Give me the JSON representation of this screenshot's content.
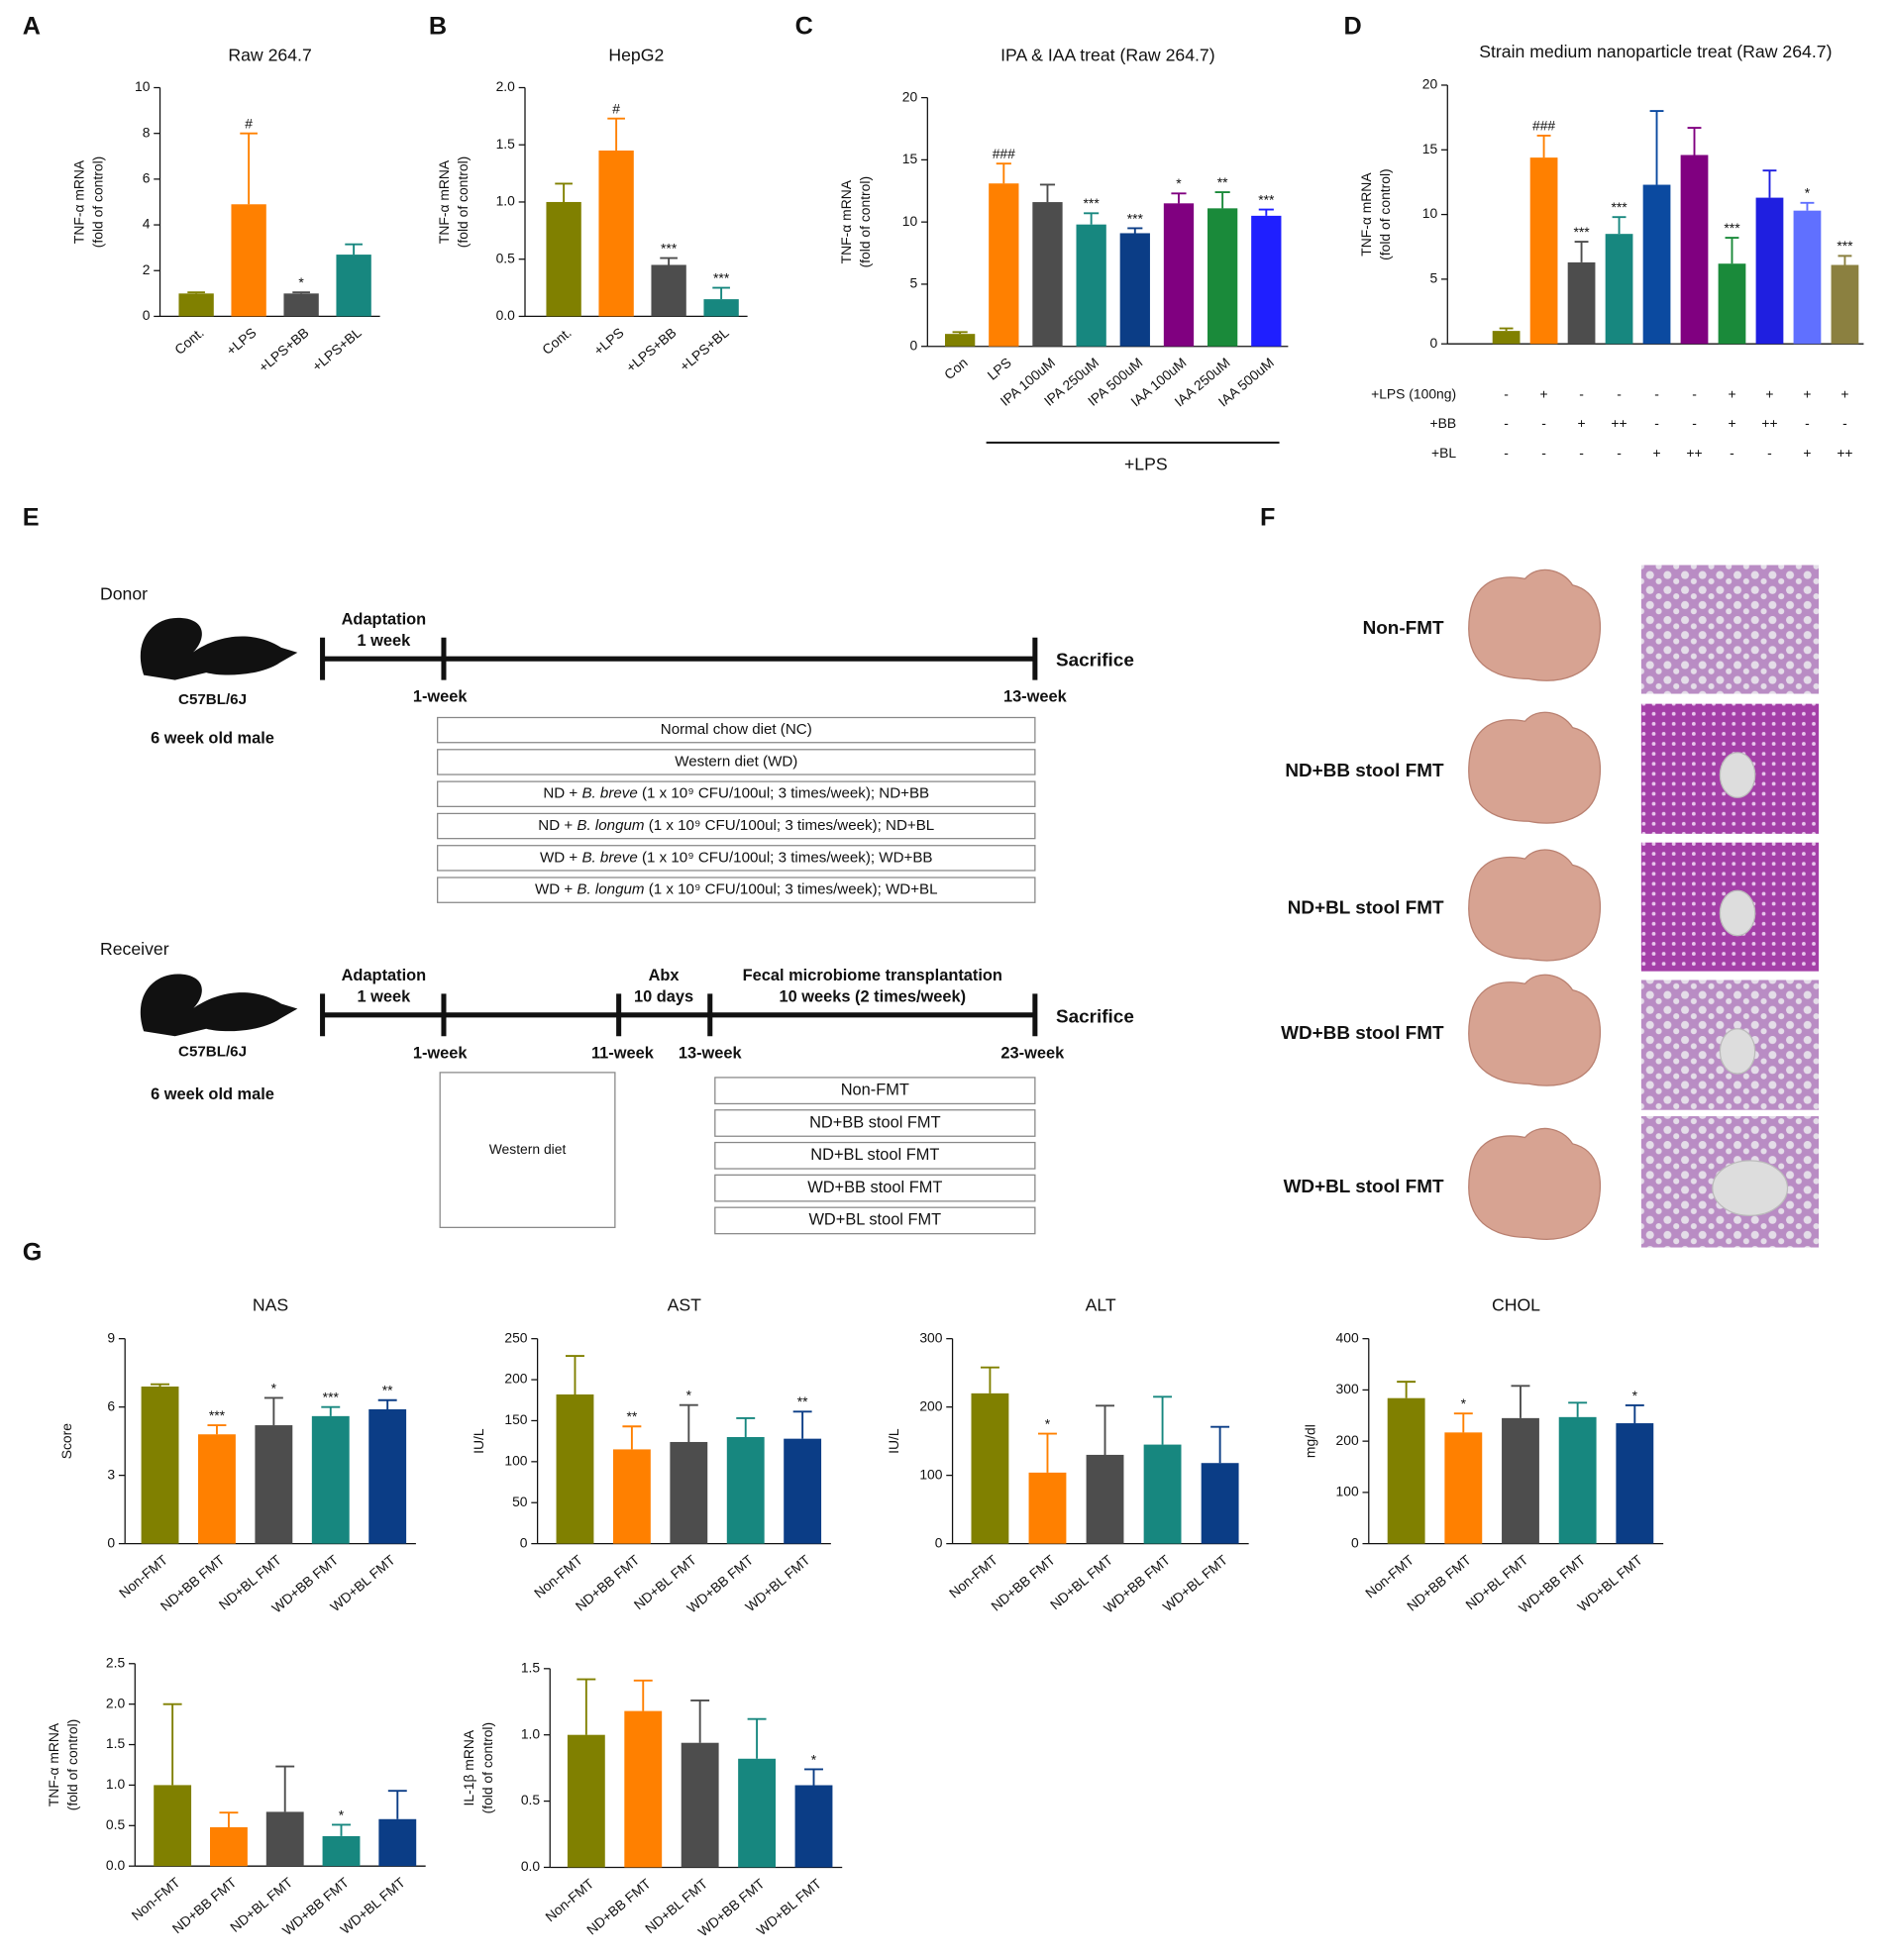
{
  "panel_labels": [
    "A",
    "B",
    "C",
    "D",
    "E",
    "F",
    "G"
  ],
  "chart_data": [
    {
      "type": "bar",
      "title": "Raw 264.7",
      "ylabel": [
        "TNF-α mRNA",
        "(fold of control)"
      ],
      "categories": [
        "Cont.",
        "+LPS",
        "+LPS+BB",
        "+LPS+BL"
      ],
      "values": [
        1.0,
        4.9,
        1.0,
        2.7
      ],
      "errors": [
        0.05,
        3.1,
        0.05,
        0.45
      ],
      "annotations": [
        null,
        "#",
        "*",
        null
      ],
      "colors": [
        "#808000",
        "#ff8000",
        "#4d4d4d",
        "#17877f"
      ],
      "ylim": [
        0,
        10
      ],
      "yticks": [
        0,
        2,
        4,
        6,
        8,
        10
      ]
    },
    {
      "type": "bar",
      "title": "HepG2",
      "ylabel": [
        "TNF-α mRNA",
        "(fold of control)"
      ],
      "categories": [
        "Cont.",
        "+LPS",
        "+LPS+BB",
        "+LPS+BL"
      ],
      "values": [
        1.0,
        1.45,
        0.45,
        0.15
      ],
      "errors": [
        0.16,
        0.28,
        0.06,
        0.1
      ],
      "annotations": [
        null,
        "#",
        "***",
        "***"
      ],
      "colors": [
        "#808000",
        "#ff8000",
        "#4d4d4d",
        "#17877f"
      ],
      "ylim": [
        0,
        2
      ],
      "yticks": [
        {
          "value": 0,
          "label": "0.0"
        },
        0.5,
        {
          "value": 1,
          "label": "1.0"
        },
        1.5,
        {
          "value": 2,
          "label": "2.0"
        }
      ]
    },
    {
      "type": "bar",
      "title": "IPA & IAA treat (Raw 264.7)",
      "ylabel": [
        "TNF-α mRNA",
        "(fold of control)"
      ],
      "categories": [
        "Con",
        "LPS",
        "IPA 100uM",
        "IPA 250uM",
        "IPA 500uM",
        "IAA 100uM",
        "IAA 250uM",
        "IAA 500uM"
      ],
      "values": [
        1.0,
        13.1,
        11.6,
        9.8,
        9.1,
        11.5,
        11.1,
        10.5
      ],
      "errors": [
        0.15,
        1.6,
        1.4,
        0.9,
        0.4,
        0.8,
        1.3,
        0.5
      ],
      "annotations": [
        null,
        "###",
        null,
        "***",
        "***",
        "*",
        "**",
        "***"
      ],
      "colors": [
        "#808000",
        "#ff8000",
        "#4d4d4d",
        "#17877f",
        "#0b3d86",
        "#800080",
        "#1a8a3a",
        "#1f1fff"
      ],
      "group_label": "+LPS",
      "ylim": [
        0,
        20
      ],
      "yticks": [
        0,
        5,
        10,
        15,
        20
      ]
    },
    {
      "type": "bar",
      "title": "Strain medium nanoparticle treat (Raw 264.7)",
      "ylabel": [
        "TNF-α mRNA",
        "(fold of control)"
      ],
      "categories": [
        null,
        null,
        null,
        null,
        null,
        null,
        null,
        null,
        null,
        null
      ],
      "values": [
        1.0,
        14.4,
        6.3,
        8.5,
        12.3,
        14.6,
        6.2,
        11.3,
        10.3,
        6.1
      ],
      "errors": [
        0.2,
        1.7,
        1.6,
        1.3,
        5.7,
        2.1,
        2.0,
        2.1,
        0.6,
        0.7
      ],
      "annotations": [
        null,
        "###",
        "***",
        "***",
        null,
        null,
        "***",
        null,
        "*",
        "***"
      ],
      "colors": [
        "#808000",
        "#ff8000",
        "#4d4d4d",
        "#17877f",
        "#0b4aa0",
        "#800080",
        "#1a8a3a",
        "#1f1fe0",
        "#6070ff",
        "#8b8040"
      ],
      "conditions": [
        {
          "name": "+LPS (100ng)",
          "values": [
            "-",
            "+",
            "-",
            "-",
            "-",
            "-",
            "+",
            "+",
            "+",
            "+"
          ]
        },
        {
          "name": "+BB",
          "values": [
            "-",
            "-",
            "+",
            "++",
            "-",
            "-",
            "+",
            "++",
            "-",
            "-"
          ]
        },
        {
          "name": "+BL",
          "values": [
            "-",
            "-",
            "-",
            "-",
            "+",
            "++",
            "-",
            "-",
            "+",
            "++"
          ]
        }
      ],
      "ylim": [
        0,
        20
      ],
      "yticks": [
        0,
        5,
        10,
        15,
        20
      ]
    },
    {
      "type": "bar",
      "title": "NAS",
      "ylabel": [
        "Score"
      ],
      "categories": [
        "Non-FMT",
        "ND+BB FMT",
        "ND+BL FMT",
        "WD+BB FMT",
        "WD+BL FMT"
      ],
      "values": [
        6.9,
        4.8,
        5.2,
        5.6,
        5.9
      ],
      "errors": [
        0.1,
        0.4,
        1.2,
        0.4,
        0.4
      ],
      "annotations": [
        null,
        "***",
        "*",
        "***",
        "**"
      ],
      "colors": [
        "#808000",
        "#ff8000",
        "#4d4d4d",
        "#17877f",
        "#0b3d86"
      ],
      "ylim": [
        0,
        9
      ],
      "yticks": [
        0,
        3,
        6,
        9
      ]
    },
    {
      "type": "bar",
      "title": "AST",
      "ylabel": [
        "IU/L"
      ],
      "categories": [
        "Non-FMT",
        "ND+BB FMT",
        "ND+BL FMT",
        "WD+BB FMT",
        "WD+BL FMT"
      ],
      "values": [
        182,
        115,
        124,
        130,
        128
      ],
      "errors": [
        47,
        28,
        45,
        23,
        33
      ],
      "annotations": [
        null,
        "**",
        "*",
        null,
        "**"
      ],
      "colors": [
        "#808000",
        "#ff8000",
        "#4d4d4d",
        "#17877f",
        "#0b3d86"
      ],
      "ylim": [
        0,
        250
      ],
      "yticks": [
        0,
        50,
        100,
        150,
        200,
        250
      ]
    },
    {
      "type": "bar",
      "title": "ALT",
      "ylabel": [
        "IU/L"
      ],
      "categories": [
        "Non-FMT",
        "ND+BB FMT",
        "ND+BL FMT",
        "WD+BB FMT",
        "WD+BL FMT"
      ],
      "values": [
        220,
        104,
        130,
        145,
        118
      ],
      "errors": [
        38,
        57,
        72,
        70,
        53
      ],
      "annotations": [
        null,
        "*",
        null,
        null,
        null
      ],
      "colors": [
        "#808000",
        "#ff8000",
        "#4d4d4d",
        "#17877f",
        "#0b3d86"
      ],
      "ylim": [
        0,
        300
      ],
      "yticks": [
        0,
        100,
        200,
        300
      ]
    },
    {
      "type": "bar",
      "title": "CHOL",
      "ylabel": [
        "mg/dl"
      ],
      "categories": [
        "Non-FMT",
        "ND+BB FMT",
        "ND+BL FMT",
        "WD+BB FMT",
        "WD+BL FMT"
      ],
      "values": [
        284,
        217,
        245,
        247,
        235
      ],
      "errors": [
        32,
        37,
        63,
        28,
        35
      ],
      "annotations": [
        null,
        "*",
        null,
        null,
        "*"
      ],
      "colors": [
        "#808000",
        "#ff8000",
        "#4d4d4d",
        "#17877f",
        "#0b3d86"
      ],
      "ylim": [
        0,
        400
      ],
      "yticks": [
        0,
        100,
        200,
        300,
        400
      ]
    },
    {
      "type": "bar",
      "ylabel": [
        "TNF-α mRNA",
        "(fold of control)"
      ],
      "categories": [
        "Non-FMT",
        "ND+BB FMT",
        "ND+BL FMT",
        "WD+BB FMT",
        "WD+BL FMT"
      ],
      "values": [
        1.0,
        0.48,
        0.67,
        0.37,
        0.58
      ],
      "errors": [
        1.0,
        0.18,
        0.56,
        0.14,
        0.35
      ],
      "annotations": [
        null,
        null,
        null,
        "*",
        null
      ],
      "colors": [
        "#808000",
        "#ff8000",
        "#4d4d4d",
        "#17877f",
        "#0b3d86"
      ],
      "ylim": [
        0,
        2.5
      ],
      "yticks": [
        {
          "value": 0,
          "label": "0.0"
        },
        0.5,
        {
          "value": 1,
          "label": "1.0"
        },
        1.5,
        {
          "value": 2,
          "label": "2.0"
        },
        2.5
      ]
    },
    {
      "type": "bar",
      "ylabel": [
        "IL-1β mRNA",
        "(fold of control)"
      ],
      "categories": [
        "Non-FMT",
        "ND+BB FMT",
        "ND+BL FMT",
        "WD+BB FMT",
        "WD+BL FMT"
      ],
      "values": [
        1.0,
        1.18,
        0.94,
        0.82,
        0.62
      ],
      "errors": [
        0.42,
        0.23,
        0.32,
        0.3,
        0.12
      ],
      "annotations": [
        null,
        null,
        null,
        null,
        "*"
      ],
      "colors": [
        "#808000",
        "#ff8000",
        "#4d4d4d",
        "#17877f",
        "#0b3d86"
      ],
      "ylim": [
        0,
        1.5
      ],
      "yticks": [
        {
          "value": 0,
          "label": "0.0"
        },
        0.5,
        {
          "value": 1,
          "label": "1.0"
        },
        1.5
      ]
    }
  ],
  "diagram_e": {
    "donor": {
      "title": "Donor",
      "strain": "C57BL/6J",
      "mice": "6 week old male",
      "phase_title": "Adaptation",
      "phase_duration": "1 week",
      "ticks": [
        "1-week",
        "13-week"
      ],
      "end": "Sacrifice",
      "diets": [
        [
          "Normal chow diet (NC)"
        ],
        [
          "Western diet (WD)"
        ],
        [
          "ND + ",
          "B. breve",
          " (1 x 10⁹ CFU/100ul; 3 times/week); ND+BB"
        ],
        [
          "ND + ",
          "B. longum",
          " (1 x 10⁹ CFU/100ul; 3 times/week); ND+BL"
        ],
        [
          "WD + ",
          "B. breve",
          " (1 x 10⁹ CFU/100ul; 3 times/week); WD+BB"
        ],
        [
          "WD + ",
          "B. longum",
          " (1 x 10⁹ CFU/100ul; 3 times/week); WD+BL"
        ]
      ]
    },
    "receiver": {
      "title": "Receiver",
      "strain": "C57BL/6J",
      "mice": "6 week old male",
      "phases": [
        [
          "Adaptation",
          "1 week"
        ],
        [
          "Abx",
          "10 days"
        ],
        [
          "Fecal microbiome transplantation",
          "10 weeks (2 times/week)"
        ]
      ],
      "ticks": [
        "1-week",
        "11-week",
        "13-week",
        "23-week"
      ],
      "end": "Sacrifice",
      "diet": "Western diet",
      "groups": [
        "Non-FMT",
        "ND+BB stool FMT",
        "ND+BL stool FMT",
        "WD+BB stool FMT",
        "WD+BL stool FMT"
      ]
    }
  },
  "figure_f": {
    "rows": [
      "Non-FMT",
      "ND+BB stool FMT",
      "ND+BL stool FMT",
      "WD+BB stool FMT",
      "WD+BL stool FMT"
    ]
  }
}
